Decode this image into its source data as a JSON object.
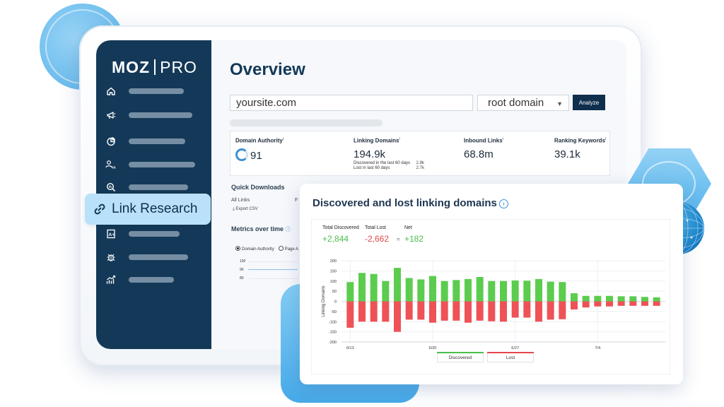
{
  "brand": {
    "logo_left": "MOZ",
    "logo_right": "PRO"
  },
  "sidebar": {
    "items": [
      {
        "icon": "home-icon"
      },
      {
        "icon": "megaphone-icon"
      },
      {
        "icon": "pie-chart-icon"
      },
      {
        "icon": "compare-users-icon"
      },
      {
        "icon": "keyword-search-icon"
      },
      {
        "icon": "link-icon"
      },
      {
        "icon": "grade-page-icon"
      },
      {
        "icon": "bug-icon"
      },
      {
        "icon": "trending-chart-icon"
      }
    ],
    "highlight": {
      "label": "Link Research",
      "icon": "link-icon"
    }
  },
  "page": {
    "title": "Overview"
  },
  "search": {
    "site_value": "yoursite.com",
    "scope_value": "root domain",
    "analyze_label": "Analyze"
  },
  "metrics": {
    "domain_authority": {
      "label": "Domain Authority",
      "value": "91"
    },
    "linking_domains": {
      "label": "Linking Domains",
      "value": "194.9k",
      "discovered_label": "Discovered in the last 60 days",
      "discovered_value": "2.8k",
      "lost_label": "Lost in last 60 days",
      "lost_value": "2.7k"
    },
    "inbound_links": {
      "label": "Inbound Links",
      "value": "68.8m"
    },
    "ranking_keywords": {
      "label": "Ranking Keywords",
      "value": "39.1k"
    },
    "info_mark": "i"
  },
  "quick_downloads": {
    "title": "Quick Downloads",
    "all_links": "All Links",
    "col2": "F",
    "export": "Export CSV"
  },
  "metrics_over_time": {
    "title": "Metrics over time",
    "options": [
      "Domain Authority",
      "Page A"
    ],
    "y_ticks": [
      "100",
      "90",
      "80"
    ]
  },
  "chart_card": {
    "title": "Discovered and lost linking domains",
    "total_discovered_label": "Total Discovered",
    "total_discovered_value": "+2,844",
    "total_lost_label": "Total Lost",
    "total_lost_value": "-2,662",
    "net_label": "Net",
    "net_value": "+182",
    "legend_discovered": "Discovered",
    "legend_lost": "Lost"
  },
  "chart_data": {
    "type": "bar",
    "ylabel": "Linking Domains",
    "ylim": [
      -200,
      200
    ],
    "y_ticks": [
      200,
      150,
      100,
      50,
      0,
      -50,
      -100,
      -150,
      -200
    ],
    "x_tick_labels": [
      "6/13",
      "6/20",
      "6/27",
      "7/4"
    ],
    "series": [
      {
        "name": "Discovered",
        "color": "#5ccc4f",
        "values": [
          95,
          140,
          135,
          100,
          165,
          115,
          108,
          125,
          100,
          105,
          110,
          120,
          100,
          100,
          103,
          102,
          110,
          97,
          95,
          40,
          27,
          27,
          27,
          25,
          25,
          22,
          20
        ]
      },
      {
        "name": "Lost",
        "color": "#ee5257",
        "values": [
          -130,
          -100,
          -100,
          -100,
          -150,
          -90,
          -90,
          -105,
          -95,
          -95,
          -105,
          -95,
          -98,
          -100,
          -80,
          -80,
          -100,
          -90,
          -88,
          -40,
          -30,
          -25,
          -25,
          -22,
          -22,
          -22,
          -22
        ]
      }
    ],
    "grid": true,
    "legend": "bottom"
  }
}
